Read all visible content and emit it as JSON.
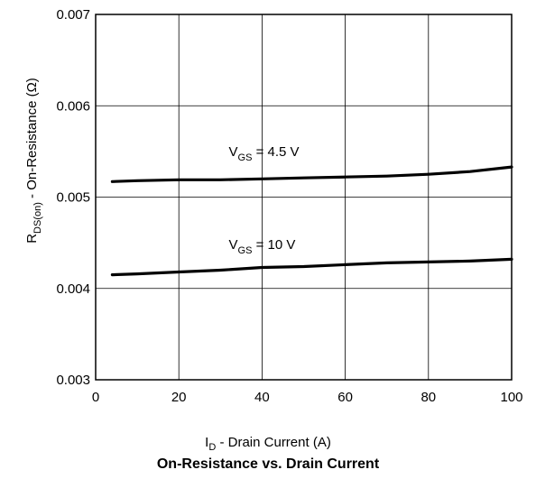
{
  "chart_data": {
    "type": "line",
    "title": "On-Resistance vs. Drain Current",
    "xlabel": {
      "main": "I",
      "sub": "D",
      "rest": " - Drain Current (A)"
    },
    "ylabel": {
      "main": "R",
      "sub": "DS(on)",
      "rest": " - On-Resistance (Ω)"
    },
    "xlim": [
      0,
      100
    ],
    "ylim": [
      0.003,
      0.007
    ],
    "x_ticks": [
      "0",
      "20",
      "40",
      "60",
      "80",
      "100"
    ],
    "x_tick_values": [
      0,
      20,
      40,
      60,
      80,
      100
    ],
    "y_ticks": [
      "0.003",
      "0.004",
      "0.005",
      "0.006",
      "0.007"
    ],
    "y_tick_values": [
      0.003,
      0.004,
      0.005,
      0.006,
      0.007
    ],
    "grid": true,
    "series": [
      {
        "label": {
          "main": "V",
          "sub": "GS",
          "rest": " = 4.5 V"
        },
        "label_pos": [
          32,
          0.00545
        ],
        "x": [
          4,
          10,
          20,
          30,
          40,
          50,
          60,
          70,
          80,
          90,
          100
        ],
        "y": [
          0.00517,
          0.00518,
          0.00519,
          0.00519,
          0.0052,
          0.00521,
          0.00522,
          0.00523,
          0.00525,
          0.00528,
          0.00533
        ]
      },
      {
        "label": {
          "main": "V",
          "sub": "GS",
          "rest": " = 10 V"
        },
        "label_pos": [
          32,
          0.00443
        ],
        "x": [
          4,
          10,
          20,
          30,
          40,
          50,
          60,
          70,
          80,
          90,
          100
        ],
        "y": [
          0.00415,
          0.00416,
          0.00418,
          0.0042,
          0.00423,
          0.00424,
          0.00426,
          0.00428,
          0.00429,
          0.0043,
          0.00432
        ]
      }
    ]
  }
}
